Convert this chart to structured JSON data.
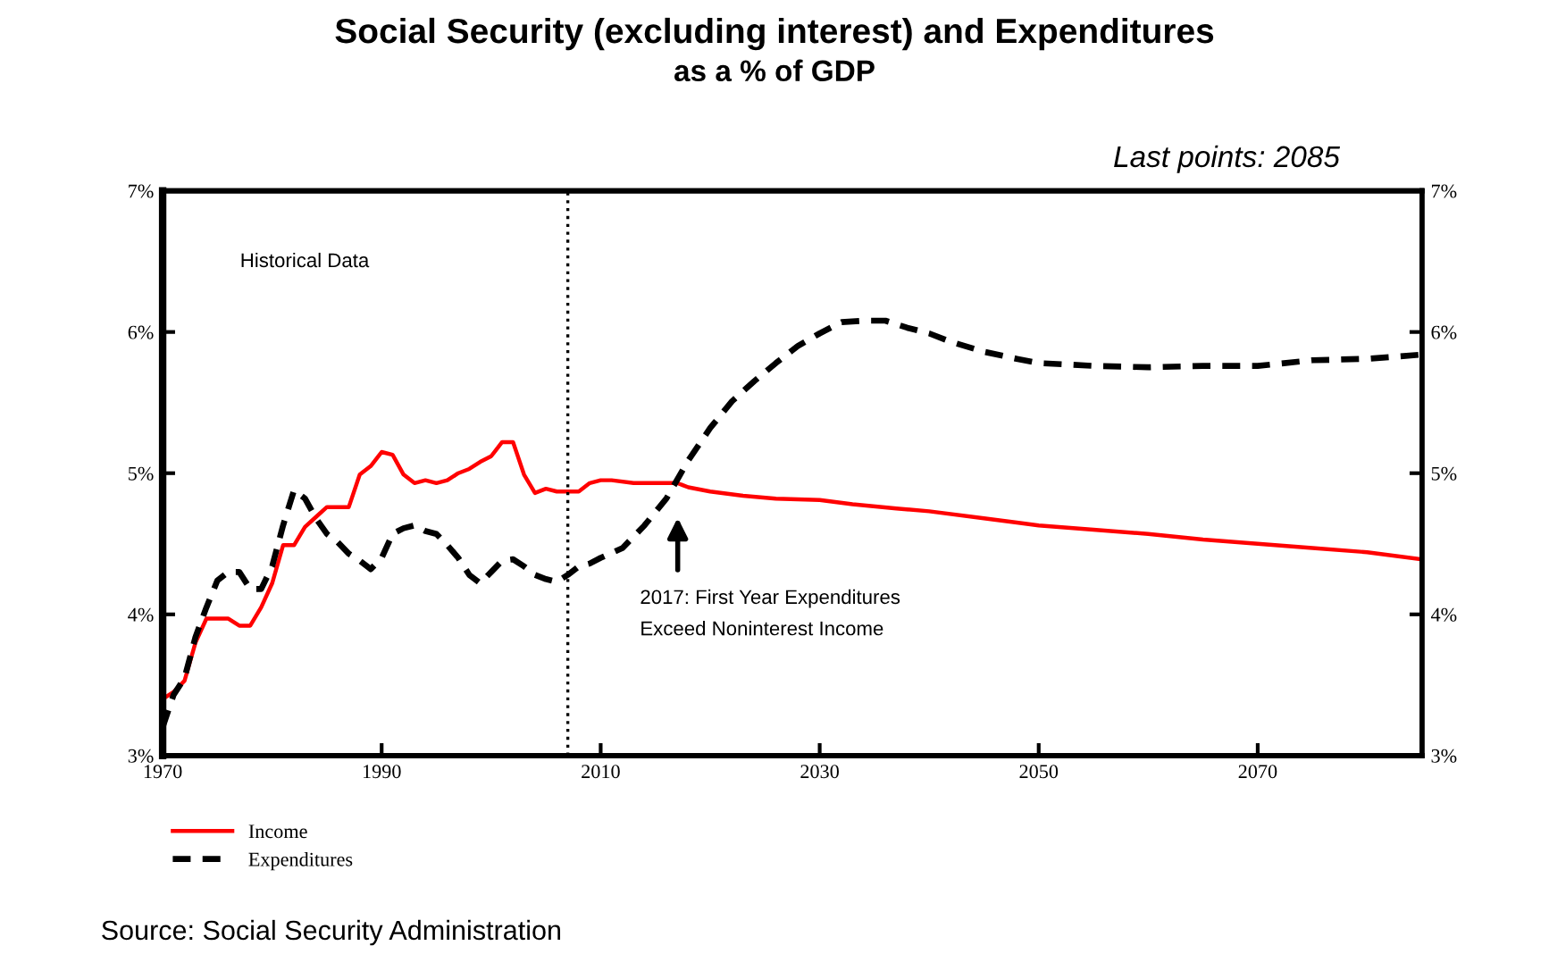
{
  "chart_data": {
    "type": "line",
    "title": "Social Security (excluding interest) and Expenditures",
    "subtitle": "as a % of GDP",
    "annotations": [
      "Last points: 2085",
      "Historical Data",
      "2017: First Year Expenditures\nExceed Noninterest Income",
      "Source: Social Security Administration"
    ],
    "series": [
      {
        "name": "Income",
        "color": "#ff0000",
        "line_style": "solid",
        "x": [
          1970,
          1971,
          1972,
          1973,
          1974,
          1975,
          1976,
          1977,
          1978,
          1979,
          1980,
          1981,
          1982,
          1983,
          1984,
          1985,
          1986,
          1987,
          1988,
          1989,
          1990,
          1991,
          1992,
          1993,
          1994,
          1995,
          1996,
          1997,
          1998,
          1999,
          2000,
          2001,
          2002,
          2003,
          2004,
          2005,
          2006,
          2007,
          2008,
          2009,
          2010,
          2011,
          2013,
          2017,
          2018,
          2020,
          2023,
          2026,
          2030,
          2033,
          2037,
          2040,
          2045,
          2048,
          2050,
          2055,
          2060,
          2065,
          2070,
          2075,
          2080,
          2085
        ],
        "values": [
          3.4,
          3.45,
          3.53,
          3.8,
          3.97,
          3.97,
          3.97,
          3.92,
          3.92,
          4.05,
          4.22,
          4.49,
          4.49,
          4.62,
          4.69,
          4.76,
          4.76,
          4.76,
          4.99,
          5.05,
          5.15,
          5.13,
          4.99,
          4.93,
          4.95,
          4.93,
          4.95,
          5.0,
          5.03,
          5.08,
          5.12,
          5.22,
          5.22,
          4.99,
          4.86,
          4.89,
          4.87,
          4.87,
          4.87,
          4.93,
          4.95,
          4.95,
          4.93,
          4.93,
          4.9,
          4.87,
          4.84,
          4.82,
          4.81,
          4.78,
          4.75,
          4.73,
          4.68,
          4.65,
          4.63,
          4.6,
          4.57,
          4.53,
          4.5,
          4.47,
          4.44,
          4.39
        ]
      },
      {
        "name": "Expenditures",
        "color": "#000000",
        "line_style": "dashed",
        "x": [
          1970,
          1971,
          1972,
          1973,
          1974,
          1975,
          1976,
          1977,
          1978,
          1979,
          1980,
          1981,
          1982,
          1983,
          1984,
          1985,
          1986,
          1987,
          1988,
          1989,
          1990,
          1991,
          1992,
          1993,
          1994,
          1995,
          1996,
          1997,
          1998,
          1999,
          2000,
          2001,
          2002,
          2003,
          2004,
          2005,
          2006,
          2007,
          2008,
          2009,
          2010,
          2012,
          2014,
          2016,
          2018,
          2020,
          2022,
          2024,
          2026,
          2028,
          2030,
          2032,
          2034,
          2036,
          2038,
          2040,
          2042,
          2045,
          2048,
          2050,
          2055,
          2060,
          2065,
          2070,
          2075,
          2080,
          2085
        ],
        "values": [
          3.2,
          3.43,
          3.55,
          3.84,
          4.05,
          4.24,
          4.3,
          4.3,
          4.18,
          4.18,
          4.34,
          4.63,
          4.88,
          4.82,
          4.68,
          4.57,
          4.51,
          4.43,
          4.38,
          4.32,
          4.4,
          4.57,
          4.61,
          4.63,
          4.59,
          4.57,
          4.49,
          4.4,
          4.28,
          4.22,
          4.3,
          4.38,
          4.39,
          4.34,
          4.28,
          4.25,
          4.23,
          4.28,
          4.34,
          4.36,
          4.4,
          4.47,
          4.63,
          4.82,
          5.09,
          5.32,
          5.51,
          5.65,
          5.78,
          5.9,
          5.99,
          6.07,
          6.08,
          6.08,
          6.03,
          5.99,
          5.93,
          5.86,
          5.81,
          5.78,
          5.76,
          5.75,
          5.76,
          5.76,
          5.8,
          5.81,
          5.84
        ]
      }
    ],
    "xlim": [
      1970,
      2085
    ],
    "xticks": [
      1970,
      1990,
      2010,
      2030,
      2050,
      2070
    ],
    "ylim": [
      3,
      7
    ],
    "yticks": [
      {
        "value": 3,
        "label": "3%"
      },
      {
        "value": 4,
        "label": "4%"
      },
      {
        "value": 5,
        "label": "5%"
      },
      {
        "value": 6,
        "label": "6%"
      },
      {
        "value": 7,
        "label": "7%"
      }
    ],
    "y2lim": [
      3,
      7
    ],
    "y2ticks": [
      {
        "value": 3,
        "label": "3%"
      },
      {
        "value": 4,
        "label": "4%"
      },
      {
        "value": 5,
        "label": "5%"
      },
      {
        "value": 6,
        "label": "6%"
      },
      {
        "value": 7,
        "label": "7%"
      }
    ],
    "ref_lines": [
      {
        "axis": "x",
        "value": 2007,
        "color": "#000000",
        "line_style": "dotted"
      }
    ],
    "grid": false,
    "legend": "bottom left",
    "marker": "none"
  }
}
